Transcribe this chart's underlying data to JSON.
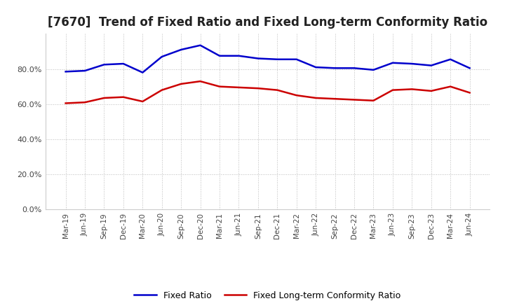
{
  "title": "[7670]  Trend of Fixed Ratio and Fixed Long-term Conformity Ratio",
  "x_labels": [
    "Mar-19",
    "Jun-19",
    "Sep-19",
    "Dec-19",
    "Mar-20",
    "Jun-20",
    "Sep-20",
    "Dec-20",
    "Mar-21",
    "Jun-21",
    "Sep-21",
    "Dec-21",
    "Mar-22",
    "Jun-22",
    "Sep-22",
    "Dec-22",
    "Mar-23",
    "Jun-23",
    "Sep-23",
    "Dec-23",
    "Mar-24",
    "Jun-24"
  ],
  "fixed_ratio": [
    78.5,
    79.0,
    82.5,
    83.0,
    78.0,
    87.0,
    91.0,
    93.5,
    87.5,
    87.5,
    86.0,
    85.5,
    85.5,
    81.0,
    80.5,
    80.5,
    79.5,
    83.5,
    83.0,
    82.0,
    85.5,
    80.5
  ],
  "fixed_lt_ratio": [
    60.5,
    61.0,
    63.5,
    64.0,
    61.5,
    68.0,
    71.5,
    73.0,
    70.0,
    69.5,
    69.0,
    68.0,
    65.0,
    63.5,
    63.0,
    62.5,
    62.0,
    68.0,
    68.5,
    67.5,
    70.0,
    66.5
  ],
  "fixed_ratio_color": "#0000CC",
  "fixed_lt_ratio_color": "#CC0000",
  "ylim": [
    0,
    100
  ],
  "yticks": [
    0,
    20,
    40,
    60,
    80
  ],
  "ytick_labels": [
    "0.0%",
    "20.0%",
    "40.0%",
    "60.0%",
    "80.0%"
  ],
  "legend_fixed_ratio": "Fixed Ratio",
  "legend_fixed_lt_ratio": "Fixed Long-term Conformity Ratio",
  "background_color": "#ffffff",
  "plot_bg_color": "#ffffff",
  "grid_color": "#bbbbbb",
  "title_fontsize": 12,
  "tick_fontsize": 7.5,
  "line_width": 1.8
}
